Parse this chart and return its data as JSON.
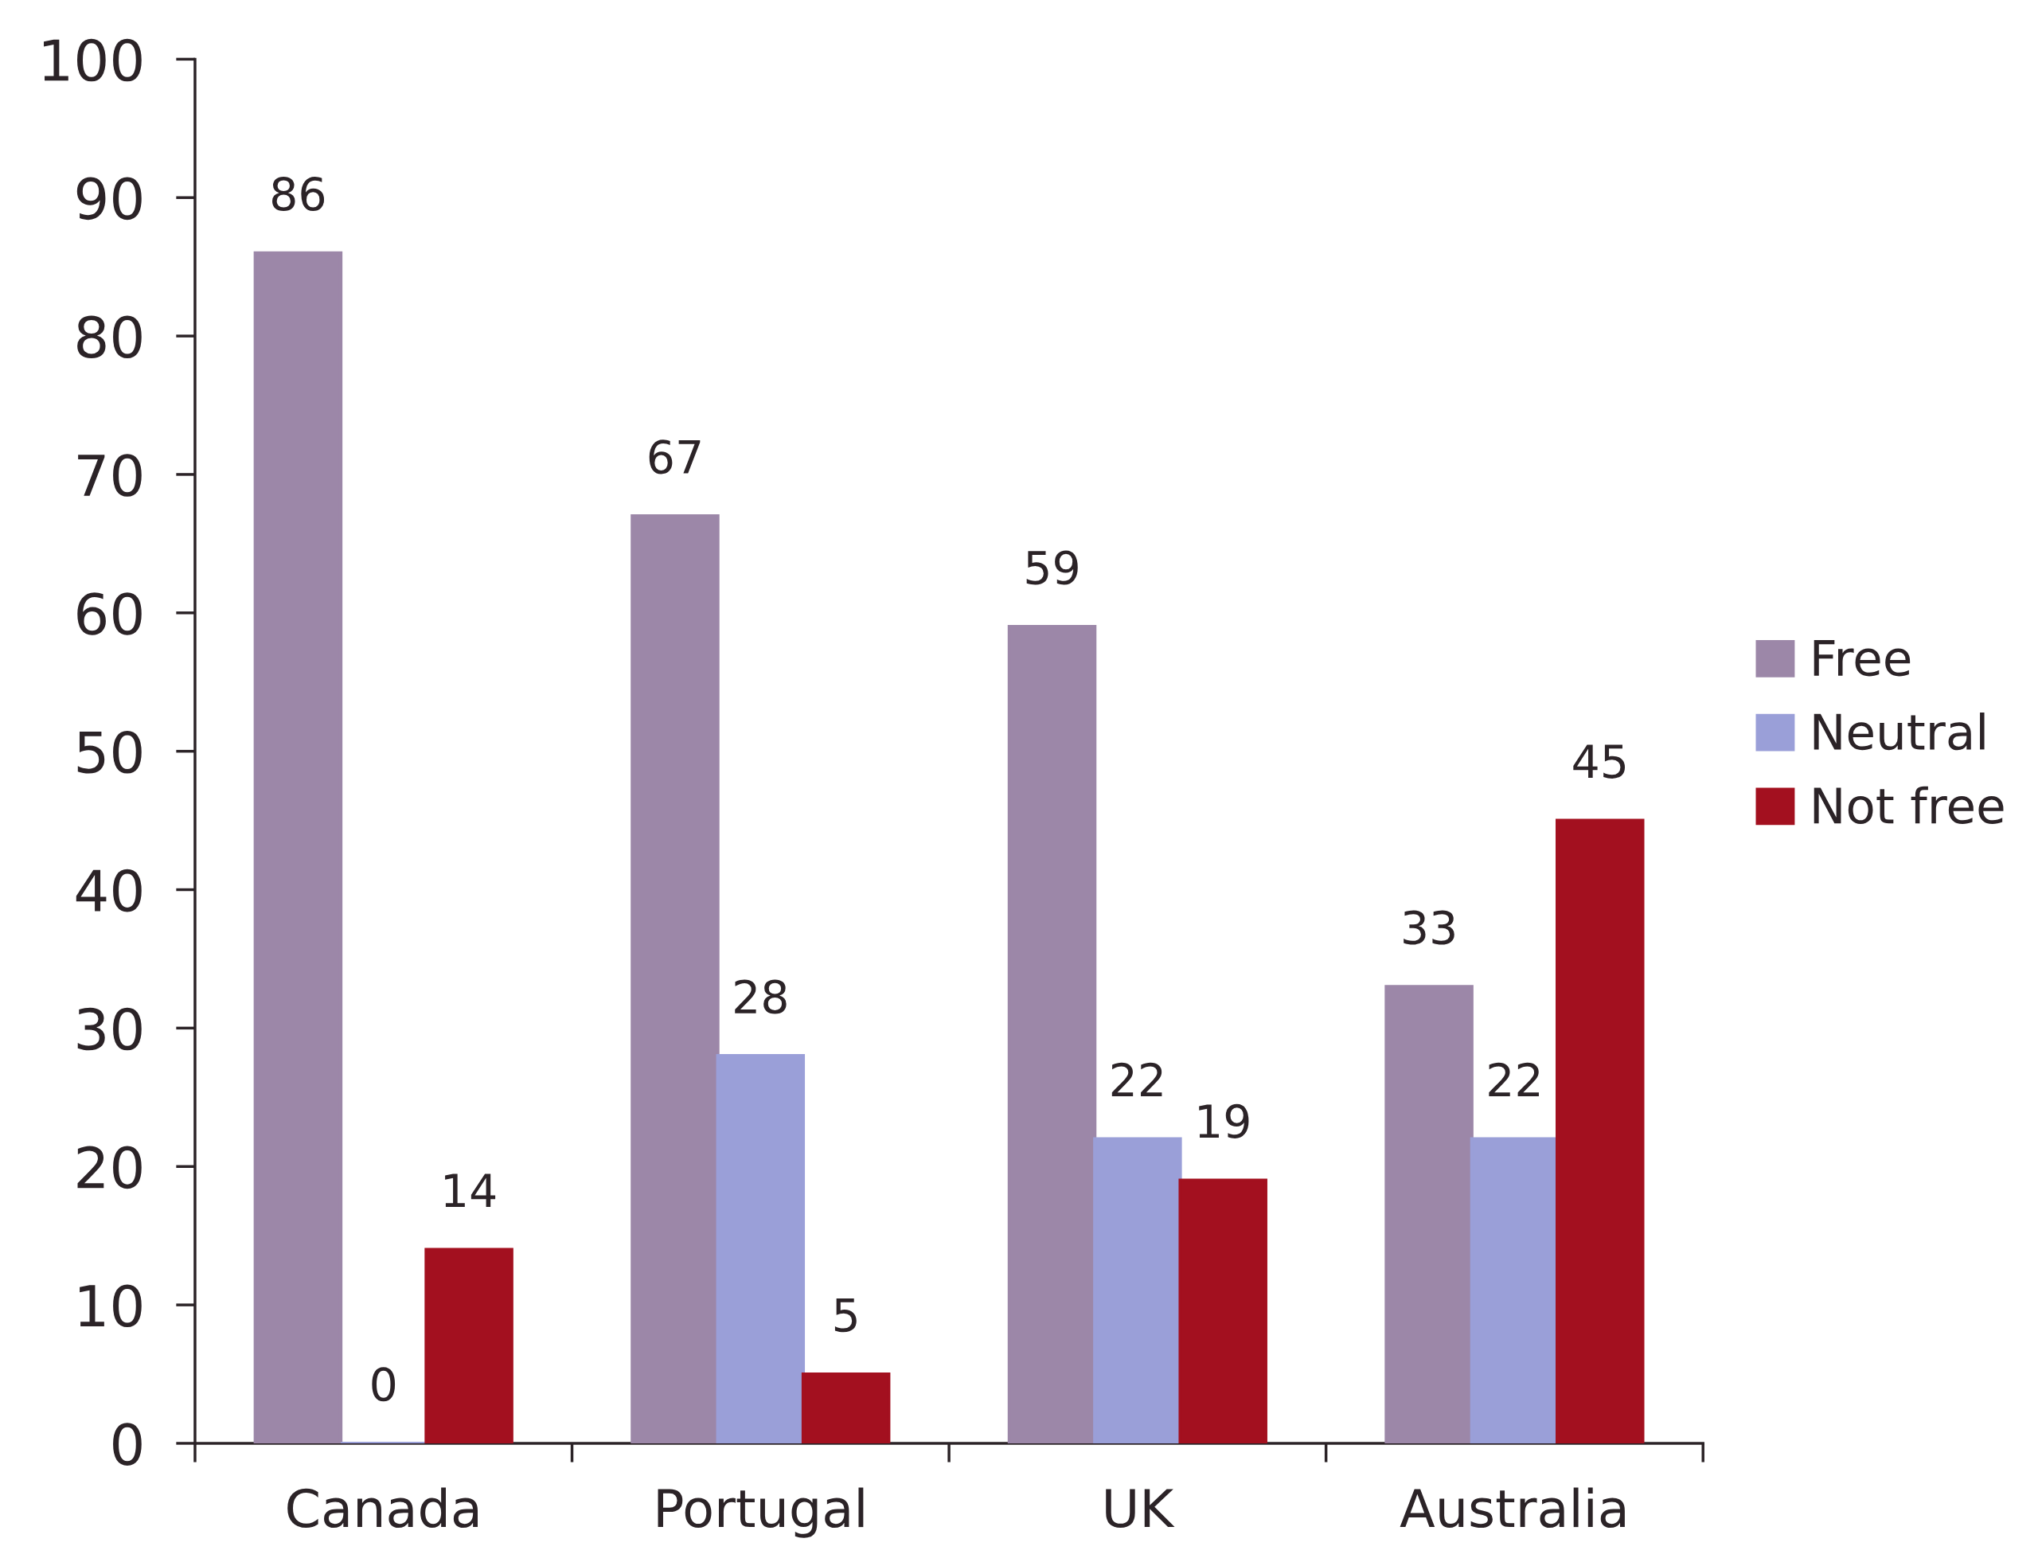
{
  "chart_data": {
    "type": "bar",
    "categories": [
      "Canada",
      "Portugal",
      "UK",
      "Australia"
    ],
    "series": [
      {
        "name": "Free",
        "color": "#9c87a8",
        "values": [
          86,
          67,
          59,
          33
        ]
      },
      {
        "name": "Neutral",
        "color": "#9a9fd8",
        "values": [
          0,
          28,
          22,
          22
        ]
      },
      {
        "name": "Not free",
        "color": "#a3101f",
        "values": [
          14,
          5,
          19,
          45
        ]
      }
    ],
    "ylim": [
      0,
      100
    ],
    "yticks": [
      0,
      10,
      20,
      30,
      40,
      50,
      60,
      70,
      80,
      90,
      100
    ],
    "data_labels": true,
    "legend": "right"
  }
}
